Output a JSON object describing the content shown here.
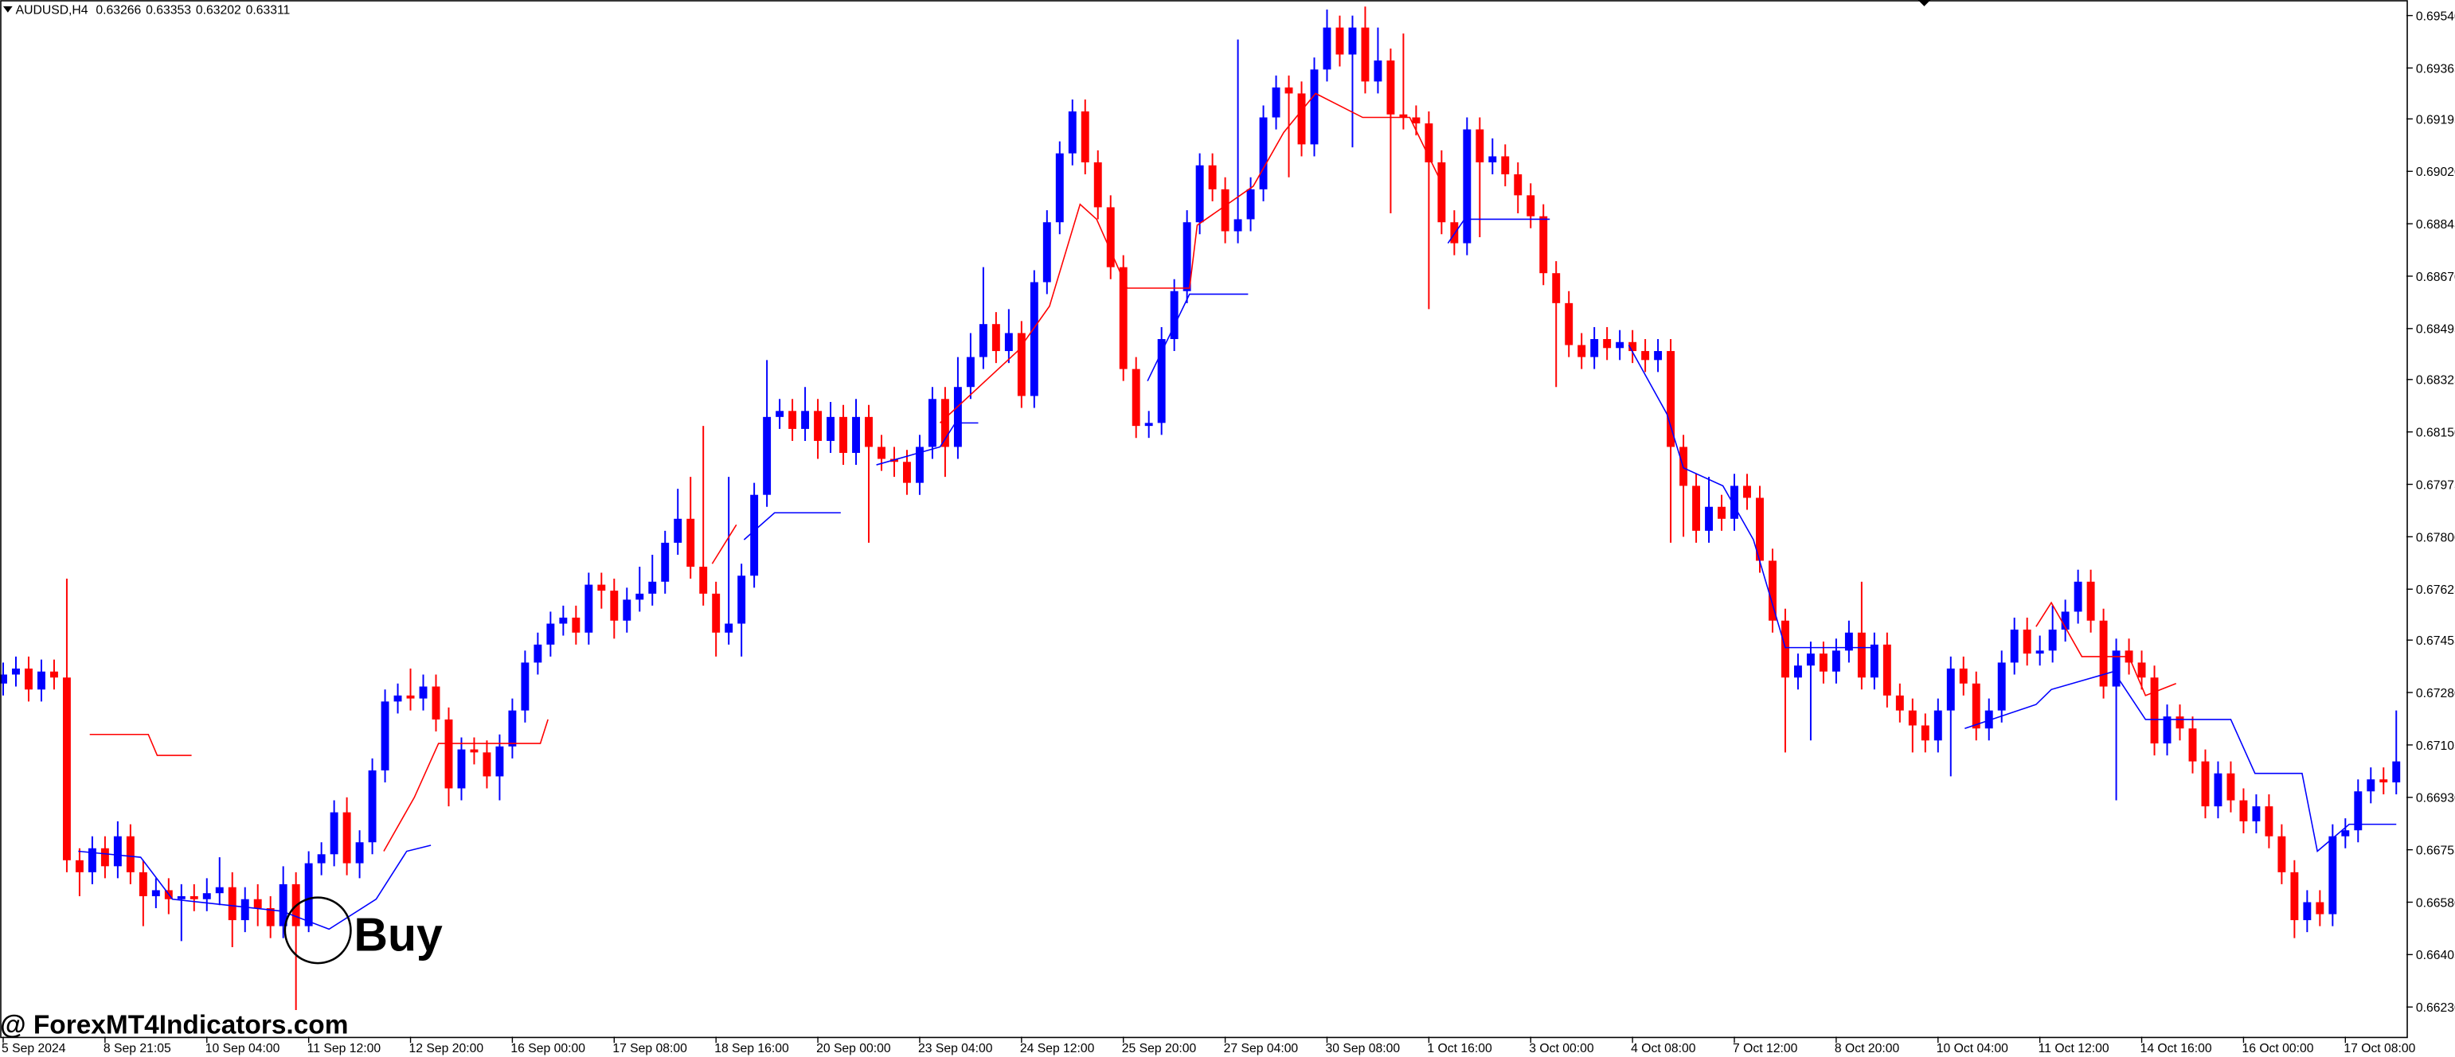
{
  "chart_data": {
    "type": "candlestick",
    "symbol": "AUDUSD,H4",
    "quote": [
      0.63266,
      0.63353,
      0.63202,
      0.63311
    ],
    "up_color": "#0000ff",
    "down_color": "#ff0000",
    "annotation": "Buy",
    "watermark": "@ ForexMT4Indicators.com",
    "xlim": [
      -0.25,
      188.8
    ],
    "ylim": [
      0.66131,
      0.69592
    ],
    "xticks": [
      {
        "value": 0,
        "label": "5 Sep 2024"
      },
      {
        "value": 8,
        "label": "8 Sep 21:05"
      },
      {
        "value": 16,
        "label": "10 Sep 04:00"
      },
      {
        "value": 24,
        "label": "11 Sep 12:00"
      },
      {
        "value": 32,
        "label": "12 Sep 20:00"
      },
      {
        "value": 40,
        "label": "16 Sep 00:00"
      },
      {
        "value": 48,
        "label": "17 Sep 08:00"
      },
      {
        "value": 56,
        "label": "18 Sep 16:00"
      },
      {
        "value": 64,
        "label": "20 Sep 00:00"
      },
      {
        "value": 72,
        "label": "23 Sep 04:00"
      },
      {
        "value": 80,
        "label": "24 Sep 12:00"
      },
      {
        "value": 88,
        "label": "25 Sep 20:00"
      },
      {
        "value": 96,
        "label": "27 Sep 04:00"
      },
      {
        "value": 104,
        "label": "30 Sep 08:00"
      },
      {
        "value": 112,
        "label": "1 Oct 16:00"
      },
      {
        "value": 120,
        "label": "3 Oct 00:00"
      },
      {
        "value": 128,
        "label": "4 Oct 08:00"
      },
      {
        "value": 136,
        "label": "7 Oct 12:00"
      },
      {
        "value": 144,
        "label": "8 Oct 20:00"
      },
      {
        "value": 152,
        "label": "10 Oct 04:00"
      },
      {
        "value": 160,
        "label": "11 Oct 12:00"
      },
      {
        "value": 168,
        "label": "14 Oct 16:00"
      },
      {
        "value": 176,
        "label": "16 Oct 00:00"
      },
      {
        "value": 184,
        "label": "17 Oct 08:00"
      }
    ],
    "yticks": [
      {
        "value": 0.6954,
        "label": "0.69540"
      },
      {
        "value": 0.69365,
        "label": "0.69365"
      },
      {
        "value": 0.69195,
        "label": "0.69195"
      },
      {
        "value": 0.6902,
        "label": "0.69020"
      },
      {
        "value": 0.68845,
        "label": "0.68845"
      },
      {
        "value": 0.6867,
        "label": "0.68670"
      },
      {
        "value": 0.68495,
        "label": "0.68495"
      },
      {
        "value": 0.68325,
        "label": "0.68325"
      },
      {
        "value": 0.6815,
        "label": "0.68150"
      },
      {
        "value": 0.67975,
        "label": "0.67975"
      },
      {
        "value": 0.678,
        "label": "0.67800"
      },
      {
        "value": 0.67625,
        "label": "0.67625"
      },
      {
        "value": 0.67455,
        "label": "0.67455"
      },
      {
        "value": 0.6728,
        "label": "0.67280"
      },
      {
        "value": 0.67105,
        "label": "0.67105"
      },
      {
        "value": 0.6693,
        "label": "0.66930"
      },
      {
        "value": 0.66755,
        "label": "0.66755"
      },
      {
        "value": 0.6658,
        "label": "0.66580"
      },
      {
        "value": 0.66405,
        "label": "0.66405"
      },
      {
        "value": 0.6623,
        "label": "0.66230"
      }
    ],
    "open": [
      0.6731,
      0.6734,
      0.6736,
      0.6729,
      0.6735,
      0.6733,
      0.6672,
      0.6668,
      0.6676,
      0.667,
      0.668,
      0.6668,
      0.666,
      0.6662,
      0.6659,
      0.666,
      0.6659,
      0.6661,
      0.6663,
      0.6652,
      0.6659,
      0.6656,
      0.665,
      0.6664,
      0.665,
      0.6671,
      0.6674,
      0.6688,
      0.6671,
      0.6678,
      0.6702,
      0.6725,
      0.6727,
      0.6726,
      0.673,
      0.6719,
      0.6696,
      0.6709,
      0.6708,
      0.67,
      0.671,
      0.6722,
      0.6738,
      0.6744,
      0.6751,
      0.6753,
      0.6748,
      0.6764,
      0.6762,
      0.6752,
      0.6759,
      0.6761,
      0.6765,
      0.6778,
      0.6786,
      0.677,
      0.6761,
      0.6748,
      0.6751,
      0.6767,
      0.6794,
      0.682,
      0.6822,
      0.6816,
      0.6822,
      0.6812,
      0.682,
      0.6808,
      0.682,
      0.681,
      0.6806,
      0.6805,
      0.6798,
      0.681,
      0.6826,
      0.681,
      0.683,
      0.684,
      0.6851,
      0.6842,
      0.6848,
      0.6827,
      0.6865,
      0.6885,
      0.6908,
      0.6922,
      0.6905,
      0.689,
      0.687,
      0.6836,
      0.6817,
      0.6818,
      0.6846,
      0.6862,
      0.6885,
      0.6904,
      0.6896,
      0.6882,
      0.6886,
      0.6896,
      0.692,
      0.693,
      0.6928,
      0.6911,
      0.6936,
      0.695,
      0.6941,
      0.695,
      0.6932,
      0.6939,
      0.6921,
      0.692,
      0.6918,
      0.6905,
      0.6885,
      0.6878,
      0.6916,
      0.6905,
      0.6907,
      0.6901,
      0.6894,
      0.6887,
      0.6868,
      0.6858,
      0.6844,
      0.684,
      0.6846,
      0.6843,
      0.6845,
      0.6842,
      0.6839,
      0.6842,
      0.681,
      0.6797,
      0.6782,
      0.679,
      0.6786,
      0.6797,
      0.6793,
      0.6772,
      0.6752,
      0.6733,
      0.6737,
      0.6741,
      0.6735,
      0.6742,
      0.6748,
      0.6733,
      0.6744,
      0.6727,
      0.6722,
      0.6717,
      0.6712,
      0.6722,
      0.6736,
      0.6731,
      0.6716,
      0.6722,
      0.6738,
      0.6749,
      0.6741,
      0.6742,
      0.6749,
      0.6755,
      0.6765,
      0.6752,
      0.673,
      0.6742,
      0.6738,
      0.6733,
      0.6711,
      0.672,
      0.6716,
      0.6705,
      0.669,
      0.6701,
      0.6692,
      0.6685,
      0.669,
      0.668,
      0.6668,
      0.6652,
      0.6658,
      0.6654,
      0.668,
      0.6682,
      0.6695,
      0.6699,
      0.6698
    ],
    "high": [
      0.6738,
      0.674,
      0.674,
      0.6739,
      0.6739,
      0.6766,
      0.6676,
      0.668,
      0.668,
      0.6685,
      0.6684,
      0.6672,
      0.6666,
      0.6666,
      0.6664,
      0.6664,
      0.6666,
      0.6673,
      0.6668,
      0.6663,
      0.6664,
      0.666,
      0.667,
      0.6668,
      0.6675,
      0.6678,
      0.6692,
      0.6693,
      0.6682,
      0.6706,
      0.6729,
      0.6731,
      0.6736,
      0.6734,
      0.6734,
      0.6723,
      0.6713,
      0.6713,
      0.6712,
      0.6714,
      0.6726,
      0.6742,
      0.6748,
      0.6755,
      0.6757,
      0.6757,
      0.6768,
      0.6768,
      0.6766,
      0.6763,
      0.677,
      0.6774,
      0.6782,
      0.6796,
      0.68,
      0.6817,
      0.6765,
      0.68,
      0.6771,
      0.6798,
      0.6839,
      0.6826,
      0.6826,
      0.683,
      0.6826,
      0.6825,
      0.6824,
      0.6826,
      0.6824,
      0.6814,
      0.681,
      0.6809,
      0.6814,
      0.683,
      0.683,
      0.684,
      0.6848,
      0.687,
      0.6855,
      0.6856,
      0.6852,
      0.6869,
      0.6889,
      0.6912,
      0.6926,
      0.6926,
      0.6909,
      0.6894,
      0.6874,
      0.684,
      0.6822,
      0.685,
      0.6866,
      0.6889,
      0.6908,
      0.6908,
      0.69,
      0.6946,
      0.69,
      0.6924,
      0.6934,
      0.6934,
      0.6932,
      0.694,
      0.6956,
      0.6954,
      0.6954,
      0.6957,
      0.695,
      0.6943,
      0.6948,
      0.6924,
      0.6922,
      0.6909,
      0.6889,
      0.692,
      0.692,
      0.6913,
      0.6911,
      0.6905,
      0.6898,
      0.6891,
      0.6872,
      0.6862,
      0.6848,
      0.685,
      0.685,
      0.6849,
      0.6849,
      0.6846,
      0.6846,
      0.6846,
      0.6814,
      0.6801,
      0.68,
      0.6794,
      0.6801,
      0.6801,
      0.6797,
      0.6776,
      0.6756,
      0.6741,
      0.6745,
      0.6745,
      0.6746,
      0.6752,
      0.6765,
      0.6748,
      0.6748,
      0.6731,
      0.6726,
      0.6721,
      0.6726,
      0.674,
      0.674,
      0.6735,
      0.6726,
      0.6742,
      0.6753,
      0.6753,
      0.6747,
      0.6757,
      0.6759,
      0.6769,
      0.6769,
      0.6756,
      0.6746,
      0.6746,
      0.6742,
      0.6737,
      0.6724,
      0.6724,
      0.672,
      0.6709,
      0.6705,
      0.6705,
      0.6696,
      0.6694,
      0.6694,
      0.6684,
      0.6672,
      0.6662,
      0.6662,
      0.6684,
      0.6686,
      0.6699,
      0.6703,
      0.6703,
      0.6722
    ],
    "low": [
      0.6727,
      0.673,
      0.6725,
      0.6725,
      0.6729,
      0.6668,
      0.666,
      0.6664,
      0.6666,
      0.6666,
      0.6664,
      0.665,
      0.6656,
      0.6654,
      0.6645,
      0.6655,
      0.6655,
      0.6657,
      0.6643,
      0.6648,
      0.665,
      0.6646,
      0.6646,
      0.6622,
      0.6648,
      0.6667,
      0.667,
      0.6667,
      0.6666,
      0.6674,
      0.6698,
      0.6721,
      0.6722,
      0.6722,
      0.6715,
      0.669,
      0.6692,
      0.6704,
      0.6696,
      0.6692,
      0.6706,
      0.6718,
      0.6734,
      0.674,
      0.6747,
      0.6744,
      0.6744,
      0.6756,
      0.6746,
      0.6748,
      0.6755,
      0.6757,
      0.6761,
      0.6774,
      0.6766,
      0.6757,
      0.674,
      0.6744,
      0.674,
      0.6763,
      0.679,
      0.6816,
      0.6812,
      0.6812,
      0.6806,
      0.6808,
      0.6804,
      0.6804,
      0.6778,
      0.6802,
      0.68,
      0.6794,
      0.6794,
      0.6806,
      0.68,
      0.6806,
      0.6826,
      0.6836,
      0.6838,
      0.6838,
      0.6823,
      0.6823,
      0.6861,
      0.6881,
      0.6904,
      0.6901,
      0.6886,
      0.6866,
      0.6832,
      0.6813,
      0.6813,
      0.6814,
      0.6842,
      0.6858,
      0.6881,
      0.6892,
      0.6878,
      0.6878,
      0.6882,
      0.6892,
      0.6916,
      0.69,
      0.6907,
      0.6907,
      0.6932,
      0.6937,
      0.691,
      0.6928,
      0.6928,
      0.6888,
      0.6916,
      0.6914,
      0.6856,
      0.6881,
      0.6874,
      0.6874,
      0.688,
      0.6901,
      0.6897,
      0.6888,
      0.6883,
      0.6864,
      0.683,
      0.684,
      0.6836,
      0.6836,
      0.6839,
      0.6839,
      0.6838,
      0.6835,
      0.6835,
      0.6778,
      0.678,
      0.6778,
      0.6778,
      0.6782,
      0.6782,
      0.6789,
      0.6768,
      0.6748,
      0.6708,
      0.6729,
      0.6712,
      0.6731,
      0.6731,
      0.6738,
      0.6729,
      0.6729,
      0.6723,
      0.6718,
      0.6708,
      0.6708,
      0.6708,
      0.67,
      0.6727,
      0.6712,
      0.6712,
      0.6718,
      0.6734,
      0.6737,
      0.6737,
      0.6738,
      0.6745,
      0.6751,
      0.6748,
      0.6726,
      0.6692,
      0.6734,
      0.6729,
      0.6707,
      0.6707,
      0.6712,
      0.6701,
      0.6686,
      0.6686,
      0.6688,
      0.6681,
      0.6681,
      0.6676,
      0.6664,
      0.6646,
      0.6648,
      0.665,
      0.665,
      0.6676,
      0.6678,
      0.6691,
      0.6694,
      0.6694
    ],
    "close": [
      0.6734,
      0.6736,
      0.6729,
      0.6735,
      0.6733,
      0.6672,
      0.6668,
      0.6676,
      0.667,
      0.668,
      0.6668,
      0.666,
      0.6662,
      0.6659,
      0.666,
      0.6659,
      0.6661,
      0.6663,
      0.6652,
      0.6659,
      0.6656,
      0.665,
      0.6664,
      0.665,
      0.6671,
      0.6674,
      0.6688,
      0.6671,
      0.6678,
      0.6702,
      0.6725,
      0.6727,
      0.6726,
      0.673,
      0.6719,
      0.6696,
      0.6709,
      0.6708,
      0.67,
      0.671,
      0.6722,
      0.6738,
      0.6744,
      0.6751,
      0.6753,
      0.6748,
      0.6764,
      0.6762,
      0.6752,
      0.6759,
      0.6761,
      0.6765,
      0.6778,
      0.6786,
      0.677,
      0.6761,
      0.6748,
      0.6751,
      0.6767,
      0.6794,
      0.682,
      0.6822,
      0.6816,
      0.6822,
      0.6812,
      0.682,
      0.6808,
      0.682,
      0.681,
      0.6806,
      0.6805,
      0.6798,
      0.681,
      0.6826,
      0.681,
      0.683,
      0.684,
      0.6851,
      0.6842,
      0.6848,
      0.6827,
      0.6865,
      0.6885,
      0.6908,
      0.6922,
      0.6905,
      0.689,
      0.687,
      0.6836,
      0.6817,
      0.6818,
      0.6846,
      0.6862,
      0.6885,
      0.6904,
      0.6896,
      0.6882,
      0.6886,
      0.6896,
      0.692,
      0.693,
      0.6928,
      0.6911,
      0.6936,
      0.695,
      0.6941,
      0.695,
      0.6932,
      0.6939,
      0.6921,
      0.692,
      0.6918,
      0.6905,
      0.6885,
      0.6878,
      0.6916,
      0.6905,
      0.6907,
      0.6901,
      0.6894,
      0.6887,
      0.6868,
      0.6858,
      0.6844,
      0.684,
      0.6846,
      0.6843,
      0.6845,
      0.6842,
      0.6839,
      0.6842,
      0.681,
      0.6797,
      0.6782,
      0.679,
      0.6786,
      0.6797,
      0.6793,
      0.6772,
      0.6752,
      0.6733,
      0.6737,
      0.6741,
      0.6735,
      0.6742,
      0.6748,
      0.6733,
      0.6744,
      0.6727,
      0.6722,
      0.6717,
      0.6712,
      0.6722,
      0.6736,
      0.6731,
      0.6716,
      0.6722,
      0.6738,
      0.6749,
      0.6741,
      0.6742,
      0.6749,
      0.6755,
      0.6765,
      0.6752,
      0.673,
      0.6742,
      0.6738,
      0.6733,
      0.6711,
      0.672,
      0.6716,
      0.6705,
      0.669,
      0.6701,
      0.6692,
      0.6685,
      0.669,
      0.668,
      0.6668,
      0.6652,
      0.6658,
      0.6654,
      0.668,
      0.6682,
      0.6695,
      0.6699,
      0.6698,
      0.6705
    ],
    "lines": [
      {
        "color": "#ff0000",
        "x": [
          6.8,
          11.4,
          12.1,
          14.8,
          null,
          29.9,
          32.3,
          34.2,
          42.2,
          42.8,
          null,
          55.7,
          57.6,
          null,
          73.6,
          79.7,
          82.2,
          84.6,
          85.9,
          88.3,
          93.2,
          93.8,
          98.2,
          100.6,
          103.1,
          106.8,
          110.5,
          112.9,
          null,
          159.7,
          160.9,
          163.3,
          167.0,
          168.3,
          170.7
        ],
        "values": [
          0.6714,
          0.6714,
          0.6707,
          0.6707,
          null,
          0.6675,
          0.6693,
          0.6711,
          0.6711,
          0.6719,
          null,
          0.6771,
          0.6784,
          null,
          0.6818,
          0.6842,
          0.6857,
          0.6891,
          0.6886,
          0.6863,
          0.6863,
          0.6884,
          0.6897,
          0.6915,
          0.6928,
          0.692,
          0.692,
          0.6899,
          null,
          0.675,
          0.6758,
          0.674,
          0.674,
          0.6727,
          0.6731
        ]
      },
      {
        "color": "#0000ff",
        "x": [
          5.9,
          10.8,
          13.3,
          21.9,
          25.6,
          29.3,
          31.7,
          33.6,
          null,
          58.2,
          60.6,
          65.8,
          null,
          68.6,
          73.6,
          74.8,
          76.6,
          null,
          89.9,
          93.2,
          97.8,
          null,
          113.5,
          114.8,
          121.5,
          null,
          127.7,
          130.7,
          132.0,
          135.1,
          137.5,
          140.0,
          146.7,
          null,
          154.1,
          159.7,
          160.9,
          165.8,
          168.3,
          175.0,
          176.9,
          180.6,
          181.8,
          184.3,
          188.0
        ],
        "values": [
          0.6675,
          0.6673,
          0.6659,
          0.6655,
          0.6649,
          0.6659,
          0.6675,
          0.6677,
          null,
          0.6779,
          0.6788,
          0.6788,
          null,
          0.6804,
          0.681,
          0.6818,
          0.6818,
          null,
          0.6832,
          0.6861,
          0.6861,
          null,
          0.6878,
          0.6886,
          0.6886,
          null,
          0.6844,
          0.6821,
          0.6803,
          0.6797,
          0.6779,
          0.6743,
          0.6743,
          null,
          0.6716,
          0.6724,
          0.6729,
          0.6735,
          0.6719,
          0.6719,
          0.6701,
          0.6701,
          0.6675,
          0.6684,
          0.6684
        ]
      }
    ]
  }
}
